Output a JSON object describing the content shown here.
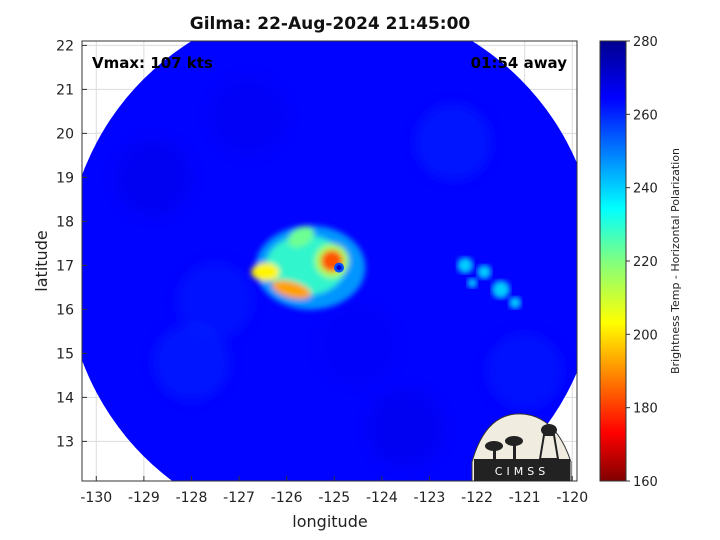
{
  "chart_data": {
    "type": "heatmap",
    "title": "Gilma: 22-Aug-2024 21:45:00",
    "annotations": {
      "vmax": "Vmax: 107 kts",
      "away": "01:54 away"
    },
    "xlabel": "longitude",
    "ylabel": "latitude",
    "xlim": [
      -130.3,
      -119.9
    ],
    "ylim": [
      12.1,
      22.1
    ],
    "xticks": [
      -130,
      -129,
      -128,
      -127,
      -126,
      -125,
      -124,
      -123,
      -122,
      -121,
      -120
    ],
    "yticks": [
      13,
      14,
      15,
      16,
      17,
      18,
      19,
      20,
      21,
      22
    ],
    "grid": true,
    "swath": {
      "center_lon": -125.05,
      "center_lat": 16.95,
      "radius_deg": 5.6
    },
    "background_temp_K": 264,
    "features": [
      {
        "name": "eye",
        "lon": -124.9,
        "lat": 16.95,
        "temp_K": 255
      },
      {
        "name": "eyewall",
        "lon": -125.05,
        "lat": 17.1,
        "temp_K": 183
      },
      {
        "name": "southwest rainband",
        "lon": -125.9,
        "lat": 16.45,
        "temp_K": 192
      },
      {
        "name": "west rainband",
        "lon": -126.45,
        "lat": 16.85,
        "temp_K": 202
      },
      {
        "name": "northwest band",
        "lon": -125.7,
        "lat": 17.65,
        "temp_K": 222
      },
      {
        "name": "east cells",
        "lon": -121.8,
        "lat": 16.7,
        "temp_K": 240
      }
    ],
    "colorbar": {
      "label": "Brightness Temp - Horizontal Polarization",
      "min": 160,
      "max": 280,
      "ticks": [
        160,
        180,
        200,
        220,
        240,
        260,
        280
      ],
      "colormap": "jet"
    },
    "logo_text": "CIMSS"
  }
}
